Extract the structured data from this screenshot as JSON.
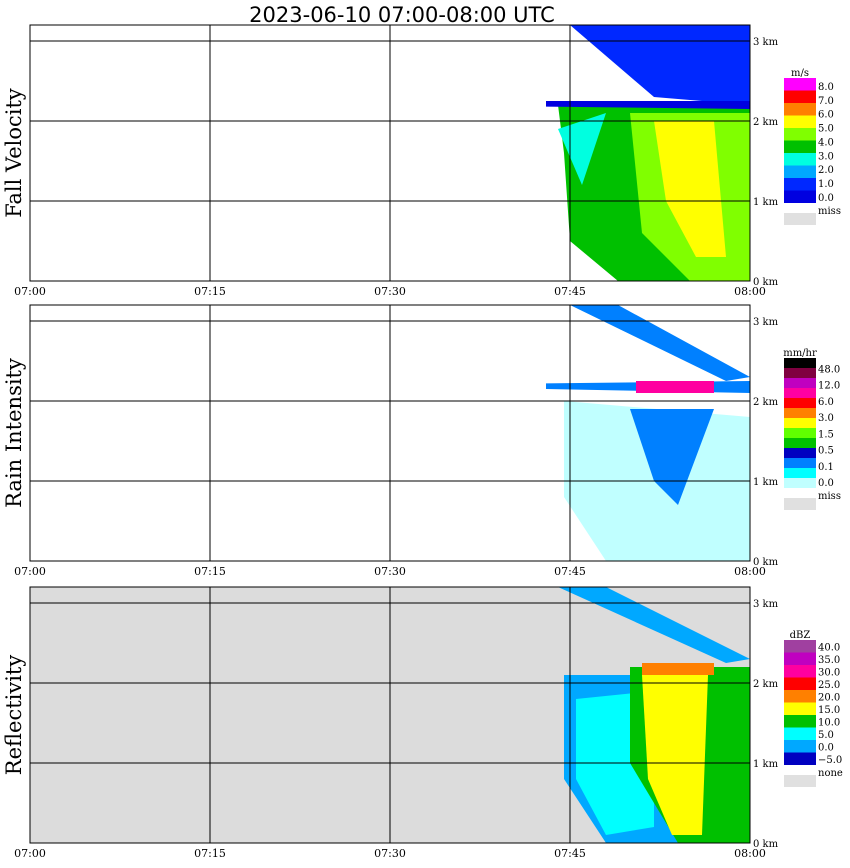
{
  "title": "2023-06-10   07:00-08:00 UTC",
  "chart_data": [
    {
      "type": "heatmap",
      "ylabel": "Fall Velocity",
      "x_ticks": [
        "07:00",
        "07:15",
        "07:30",
        "07:45",
        "08:00"
      ],
      "y_ticks": [
        "0 km",
        "1 km",
        "2 km",
        "3 km"
      ],
      "xlim": [
        "07:00",
        "08:00"
      ],
      "ylim_km": [
        0,
        3.2
      ],
      "grid": true,
      "legend": {
        "placement": "right",
        "unit": "m/s",
        "levels": [
          "8.0",
          "7.0",
          "6.0",
          "5.0",
          "4.0",
          "3.0",
          "2.0",
          "1.0",
          "0.0"
        ],
        "colors": [
          "#ff00ff",
          "#ff0000",
          "#ff8000",
          "#ffff00",
          "#80ff00",
          "#00c000",
          "#00ffe0",
          "#00a8ff",
          "#0028ff",
          "#0000e0"
        ],
        "missing_label": "miss",
        "missing_color": "#e0e0e0"
      }
    },
    {
      "type": "heatmap",
      "ylabel": "Rain Intensity",
      "x_ticks": [
        "07:00",
        "07:15",
        "07:30",
        "07:45",
        "08:00"
      ],
      "y_ticks": [
        "0 km",
        "1 km",
        "2 km",
        "3 km"
      ],
      "xlim": [
        "07:00",
        "08:00"
      ],
      "ylim_km": [
        0,
        3.2
      ],
      "grid": true,
      "legend": {
        "placement": "right",
        "unit": "mm/hr",
        "levels": [
          "48.0",
          "12.0",
          "6.0",
          "3.0",
          "1.5",
          "0.5",
          "0.1",
          "0.0"
        ],
        "colors": [
          "#000000",
          "#800040",
          "#c000c0",
          "#ff00a0",
          "#ff0000",
          "#ff8000",
          "#ffff00",
          "#60ff00",
          "#00c000",
          "#0000c0",
          "#0080ff",
          "#00ffff",
          "#c0ffff"
        ],
        "missing_label": "miss",
        "missing_color": "#e0e0e0"
      }
    },
    {
      "type": "heatmap",
      "ylabel": "Reflectivity",
      "x_ticks": [
        "07:00",
        "07:15",
        "07:30",
        "07:45",
        "08:00"
      ],
      "y_ticks": [
        "0 km",
        "1 km",
        "2 km",
        "3 km"
      ],
      "xlim": [
        "07:00",
        "08:00"
      ],
      "ylim_km": [
        0,
        3.2
      ],
      "grid": true,
      "legend": {
        "placement": "right",
        "unit": "dBZ",
        "levels": [
          "40.0",
          "35.0",
          "30.0",
          "25.0",
          "20.0",
          "15.0",
          "10.0",
          "5.0",
          "0.0",
          "−5.0"
        ],
        "colors": [
          "#a040a0",
          "#c000c0",
          "#ff00a0",
          "#ff0000",
          "#ff8000",
          "#ffff00",
          "#00c000",
          "#00ffff",
          "#00a8ff",
          "#0000c0"
        ],
        "missing_label": "none",
        "missing_color": "#e0e0e0"
      }
    }
  ]
}
